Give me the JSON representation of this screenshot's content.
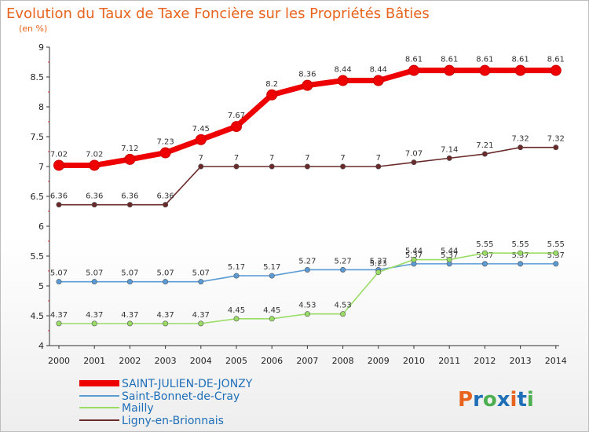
{
  "chart_data": {
    "type": "line",
    "title": "Evolution du Taux de Taxe Foncière sur les Propriétés Bâties",
    "subtitle": "(en %)",
    "x": [
      "2000",
      "2001",
      "2002",
      "2003",
      "2004",
      "2005",
      "2006",
      "2007",
      "2008",
      "2009",
      "2010",
      "2011",
      "2012",
      "2013",
      "2014"
    ],
    "ylim": [
      4,
      9
    ],
    "yticks": [
      "4",
      "4.5",
      "5",
      "5.5",
      "6",
      "6.5",
      "7",
      "7.5",
      "8",
      "8.5",
      "9"
    ],
    "grid": false,
    "legend_position": "bottom-left",
    "series": [
      {
        "name": "SAINT-JULIEN-DE-JONZY",
        "color": "#ee0000",
        "values": [
          7.02,
          7.02,
          7.12,
          7.23,
          7.45,
          7.67,
          8.2,
          8.36,
          8.44,
          8.44,
          8.61,
          8.61,
          8.61,
          8.61,
          8.61
        ],
        "labels": [
          "7.02",
          "7.02",
          "7.12",
          "7.23",
          "7.45",
          "7.67",
          "8.2",
          "8.36",
          "8.44",
          "8.44",
          "8.61",
          "8.61",
          "8.61",
          "8.61",
          "8.61"
        ]
      },
      {
        "name": "Saint-Bonnet-de-Cray",
        "color": "#5b9bd5",
        "values": [
          5.07,
          5.07,
          5.07,
          5.07,
          5.07,
          5.17,
          5.17,
          5.27,
          5.27,
          5.27,
          5.37,
          5.37,
          5.37,
          5.37,
          5.37
        ],
        "labels": [
          "5.07",
          "5.07",
          "5.07",
          "5.07",
          "5.07",
          "5.17",
          "5.17",
          "5.27",
          "5.27",
          "5.27",
          "5.37",
          "5.37",
          "5.37",
          "5.37",
          "5.37"
        ]
      },
      {
        "name": "Mailly",
        "color": "#99dd66",
        "values": [
          4.37,
          4.37,
          4.37,
          4.37,
          4.37,
          4.45,
          4.45,
          4.53,
          4.53,
          5.23,
          5.44,
          5.44,
          5.55,
          5.55,
          5.55
        ],
        "labels": [
          "4.37",
          "4.37",
          "4.37",
          "4.37",
          "4.37",
          "4.45",
          "4.45",
          "4.53",
          "4.53",
          "5.23",
          "5.44",
          "5.44",
          "5.55",
          "5.55",
          "5.55"
        ]
      },
      {
        "name": "Ligny-en-Brionnais",
        "color": "#6b2a2a",
        "values": [
          6.36,
          6.36,
          6.36,
          6.36,
          7,
          7,
          7,
          7,
          7,
          7,
          7.07,
          7.14,
          7.21,
          7.32,
          7.32
        ],
        "labels": [
          "6.36",
          "6.36",
          "6.36",
          "6.36",
          "7",
          "7",
          "7",
          "7",
          "7",
          "7",
          "7.07",
          "7.14",
          "7.21",
          "7.32",
          "7.32"
        ]
      }
    ]
  },
  "logo": {
    "text": "Proxiti",
    "colors": [
      "#e8641e",
      "#1e6fb8",
      "#4caf50",
      "#1e6fb8",
      "#e8641e",
      "#1e6fb8",
      "#4caf50"
    ]
  }
}
